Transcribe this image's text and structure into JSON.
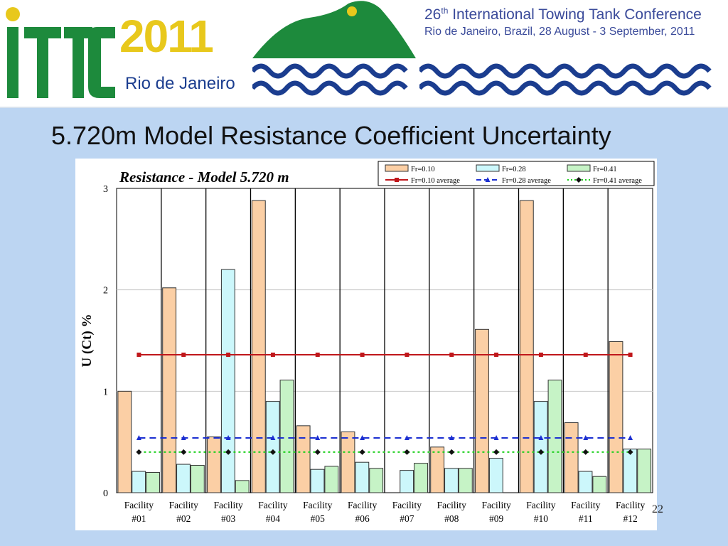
{
  "banner": {
    "logo_text": "ITTC",
    "year": "2011",
    "city": "Rio de Janeiro",
    "conference_ordinal": "26",
    "conference_ordinal_suffix": "th",
    "conference_name": " International Towing Tank Conference",
    "conference_details": "Rio de Janeiro, Brazil, 28 August - 3 September, 2011",
    "colors": {
      "green": "#1d8a3c",
      "yellow": "#e8c81c",
      "blue": "#1b3d8f"
    }
  },
  "slide": {
    "title": "5.720m Model Resistance Coefficient Uncertainty",
    "page_number": "22"
  },
  "chart_data": {
    "type": "bar",
    "title": "Resistance - Model 5.720 m",
    "xlabel": "",
    "ylabel": "U (Ct) %",
    "ylim": [
      0,
      3
    ],
    "yticks": [
      "0",
      "1",
      "2",
      "3"
    ],
    "grid": true,
    "legend_position": "top-right",
    "categories": [
      [
        "Facility",
        "#01"
      ],
      [
        "Facility",
        "#02"
      ],
      [
        "Facility",
        "#03"
      ],
      [
        "Facility",
        "#04"
      ],
      [
        "Facility",
        "#05"
      ],
      [
        "Facility",
        "#06"
      ],
      [
        "Facility",
        "#07"
      ],
      [
        "Facility",
        "#08"
      ],
      [
        "Facility",
        "#09"
      ],
      [
        "Facility",
        "#10"
      ],
      [
        "Facility",
        "#11"
      ],
      [
        "Facility",
        "#12"
      ]
    ],
    "series": [
      {
        "name": "Fr=0.10",
        "color": "#fbcfa5",
        "edge": "#333333",
        "values": [
          1.0,
          2.02,
          0.55,
          2.88,
          0.66,
          0.6,
          null,
          0.45,
          1.61,
          2.88,
          0.69,
          1.49
        ]
      },
      {
        "name": "Fr=0.28",
        "color": "#ccf7fb",
        "edge": "#333333",
        "values": [
          0.21,
          0.28,
          2.2,
          0.9,
          0.23,
          0.3,
          0.22,
          0.24,
          0.34,
          0.9,
          0.21,
          0.43
        ]
      },
      {
        "name": "Fr=0.41",
        "color": "#c6f3c6",
        "edge": "#333333",
        "values": [
          0.2,
          0.27,
          0.12,
          1.11,
          0.26,
          0.24,
          0.29,
          0.24,
          null,
          1.11,
          0.16,
          0.43
        ]
      }
    ],
    "averages": [
      {
        "name": "Fr=0.10 average",
        "value": 1.36,
        "color": "#c0171b",
        "marker": "square",
        "dash": "solid"
      },
      {
        "name": "Fr=0.28 average",
        "value": 0.54,
        "color": "#1c2fd1",
        "marker": "triangle",
        "dash": "dashed"
      },
      {
        "name": "Fr=0.41 average",
        "value": 0.4,
        "color": "#1ed01e",
        "marker": "diamond",
        "dash": "dotted"
      }
    ]
  }
}
